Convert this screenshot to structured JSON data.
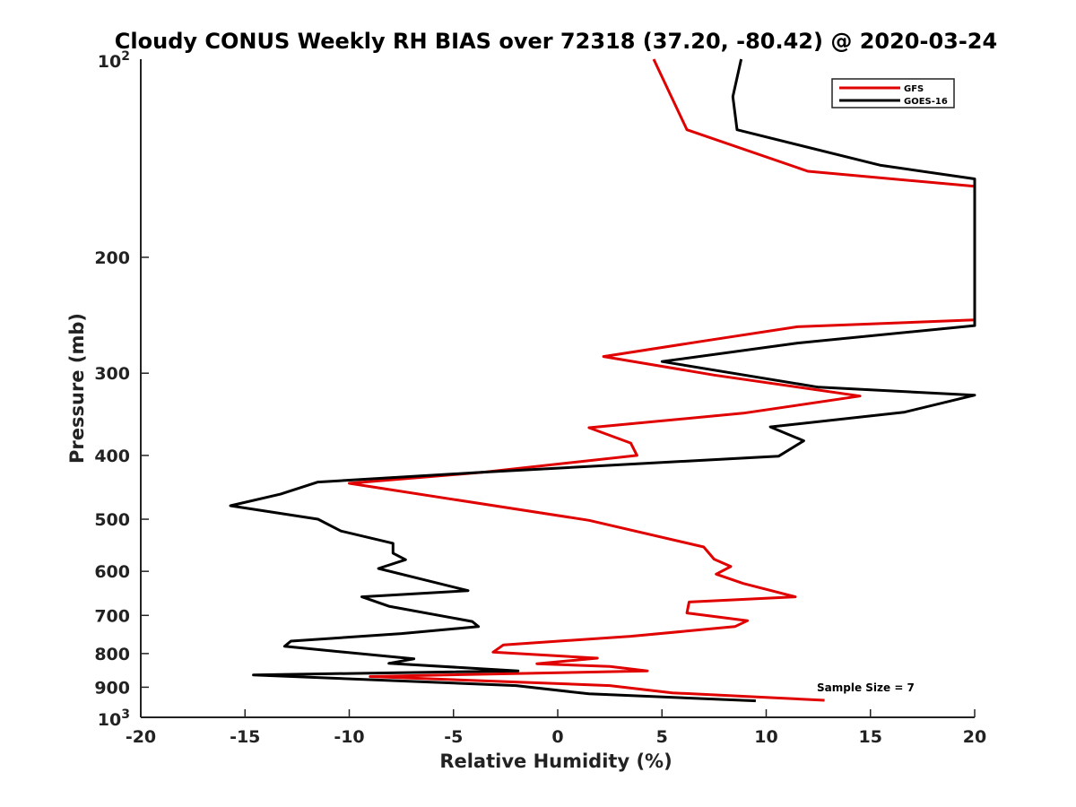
{
  "chart_data": {
    "type": "line",
    "title": "Cloudy CONUS Weekly RH BIAS over 72318 (37.20, -80.42) @ 2020-03-24",
    "xlabel": "Relative Humidity (%)",
    "ylabel": "Pressure (mb)",
    "xlim": [
      -20,
      20
    ],
    "ylim": [
      100,
      1000
    ],
    "yscale": "log",
    "y_reversed": true,
    "x_ticks": [
      -20,
      -15,
      -10,
      -5,
      0,
      5,
      10,
      15,
      20
    ],
    "x_tick_labels": [
      "-20",
      "-15",
      "-10",
      "-5",
      "0",
      "5",
      "10",
      "15",
      "20"
    ],
    "y_ticks": [
      200,
      300,
      400,
      500,
      600,
      700,
      800,
      900
    ],
    "y_tick_labels": [
      "200",
      "300",
      "400",
      "500",
      "600",
      "700",
      "800",
      "900"
    ],
    "y_top_label": {
      "base": "10",
      "exp": "2"
    },
    "y_bottom_label": {
      "base": "10",
      "exp": "3"
    },
    "legend_position": "top-right",
    "annotation": "Sample Size = 7",
    "series": [
      {
        "name": "GFS",
        "color": "#e00000",
        "points": [
          [
            4.6,
            100
          ],
          [
            6.2,
            128
          ],
          [
            12.0,
            148
          ],
          [
            20.0,
            156
          ],
          [
            20.0,
            249
          ],
          [
            11.5,
            255
          ],
          [
            7.0,
            268
          ],
          [
            2.2,
            283
          ],
          [
            7.5,
            302
          ],
          [
            14.5,
            325
          ],
          [
            8.9,
            345
          ],
          [
            1.5,
            363
          ],
          [
            3.5,
            383
          ],
          [
            3.8,
            400
          ],
          [
            -3.5,
            424
          ],
          [
            -10.0,
            441
          ],
          [
            1.5,
            502
          ],
          [
            7.0,
            551
          ],
          [
            7.5,
            575
          ],
          [
            8.3,
            590
          ],
          [
            7.6,
            606
          ],
          [
            8.9,
            626
          ],
          [
            11.4,
            656
          ],
          [
            6.3,
            668
          ],
          [
            6.2,
            694
          ],
          [
            9.1,
            713
          ],
          [
            8.5,
            728
          ],
          [
            3.5,
            753
          ],
          [
            -2.6,
            776
          ],
          [
            -3.1,
            796
          ],
          [
            1.9,
            813
          ],
          [
            -1.0,
            829
          ],
          [
            2.5,
            837
          ],
          [
            4.3,
            850
          ],
          [
            -9.0,
            867
          ],
          [
            2.5,
            895
          ],
          [
            5.5,
            918
          ],
          [
            12.8,
            942
          ]
        ]
      },
      {
        "name": "GOES-16",
        "color": "#000000",
        "points": [
          [
            8.8,
            100
          ],
          [
            8.4,
            114
          ],
          [
            8.6,
            128
          ],
          [
            15.5,
            145
          ],
          [
            20.0,
            152
          ],
          [
            20.0,
            254
          ],
          [
            11.5,
            270
          ],
          [
            5.0,
            288
          ],
          [
            12.5,
            315
          ],
          [
            20.0,
            324
          ],
          [
            16.6,
            344
          ],
          [
            10.2,
            362
          ],
          [
            11.8,
            380
          ],
          [
            10.6,
            401
          ],
          [
            -3.5,
            424
          ],
          [
            -11.5,
            439
          ],
          [
            -13.3,
            458
          ],
          [
            -15.7,
            477
          ],
          [
            -11.5,
            500
          ],
          [
            -10.4,
            521
          ],
          [
            -7.9,
            544
          ],
          [
            -7.9,
            563
          ],
          [
            -7.3,
            576
          ],
          [
            -8.6,
            594
          ],
          [
            -4.3,
            642
          ],
          [
            -9.4,
            656
          ],
          [
            -8.1,
            678
          ],
          [
            -4.1,
            715
          ],
          [
            -3.8,
            728
          ],
          [
            -7.5,
            746
          ],
          [
            -12.8,
            766
          ],
          [
            -13.1,
            780
          ],
          [
            -6.9,
            815
          ],
          [
            -8.1,
            828
          ],
          [
            -1.9,
            850
          ],
          [
            -14.6,
            862
          ],
          [
            -2.0,
            895
          ],
          [
            1.5,
            921
          ],
          [
            9.5,
            944
          ]
        ]
      }
    ]
  }
}
